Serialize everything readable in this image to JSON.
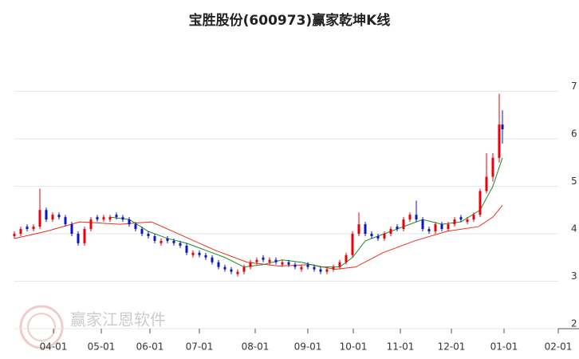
{
  "chart_data": {
    "type": "candlestick",
    "title": "宝胜股份(600973)赢家乾坤K线",
    "watermark": "赢家江恩软件",
    "up_color": "#e8000b",
    "down_color": "#0a14c8",
    "grid": true,
    "xlim": [
      0,
      354
    ],
    "ylim": [
      2,
      8
    ],
    "yticks": [
      2,
      3,
      4,
      5,
      6,
      7
    ],
    "xticks": [
      {
        "value": 24.5,
        "label": "04-01"
      },
      {
        "value": 54.5,
        "label": "05-01"
      },
      {
        "value": 85,
        "label": "06-01"
      },
      {
        "value": 116,
        "label": "07-01"
      },
      {
        "value": 151,
        "label": "08-01"
      },
      {
        "value": 184,
        "label": "09-01"
      },
      {
        "value": 212.5,
        "label": "10-01"
      },
      {
        "value": 242,
        "label": "11-01"
      },
      {
        "value": 274,
        "label": "12-01"
      },
      {
        "value": 307,
        "label": "01-01"
      },
      {
        "value": 341,
        "label": "02-01"
      }
    ],
    "x": [
      0,
      4,
      8,
      12,
      16,
      20,
      24,
      28,
      32,
      36,
      40,
      44,
      48,
      52,
      56,
      60,
      64,
      68,
      72,
      76,
      80,
      84,
      88,
      92,
      96,
      100,
      104,
      108,
      112,
      116,
      120,
      124,
      128,
      132,
      136,
      140,
      144,
      148,
      152,
      156,
      160,
      164,
      168,
      172,
      176,
      180,
      184,
      188,
      192,
      196,
      200,
      204,
      208,
      212,
      216,
      220,
      224,
      228,
      232,
      236,
      240,
      244,
      248,
      252,
      256,
      260,
      264,
      268,
      272,
      276,
      280,
      284,
      288,
      292,
      296,
      300,
      304,
      306
    ],
    "open": [
      3.95,
      4.0,
      4.15,
      4.1,
      4.15,
      4.5,
      4.3,
      4.4,
      4.35,
      4.2,
      4.0,
      3.8,
      4.1,
      4.35,
      4.3,
      4.3,
      4.4,
      4.35,
      4.3,
      4.2,
      4.1,
      4.0,
      3.95,
      3.8,
      3.9,
      3.85,
      3.8,
      3.75,
      3.55,
      3.6,
      3.55,
      3.5,
      3.4,
      3.3,
      3.25,
      3.15,
      3.2,
      3.3,
      3.4,
      3.5,
      3.4,
      3.45,
      3.35,
      3.4,
      3.35,
      3.25,
      3.35,
      3.3,
      3.25,
      3.2,
      3.25,
      3.3,
      3.4,
      3.55,
      4.0,
      4.2,
      4.0,
      3.95,
      3.9,
      4.0,
      4.15,
      4.1,
      4.3,
      4.4,
      4.3,
      4.1,
      4.05,
      4.2,
      4.1,
      4.2,
      4.35,
      4.25,
      4.3,
      4.4,
      4.9,
      5.2,
      5.6,
      6.3
    ],
    "high": [
      4.05,
      4.15,
      4.2,
      4.2,
      4.95,
      4.55,
      4.45,
      4.45,
      4.4,
      4.25,
      4.05,
      4.15,
      4.35,
      4.4,
      4.4,
      4.4,
      4.45,
      4.4,
      4.35,
      4.25,
      4.15,
      4.05,
      4.0,
      3.9,
      3.95,
      3.9,
      3.85,
      3.8,
      3.65,
      3.65,
      3.6,
      3.55,
      3.45,
      3.35,
      3.3,
      3.25,
      3.35,
      3.45,
      3.5,
      3.55,
      3.5,
      3.5,
      3.45,
      3.45,
      3.4,
      3.35,
      3.4,
      3.35,
      3.3,
      3.3,
      3.35,
      3.45,
      3.6,
      4.05,
      4.45,
      4.25,
      4.05,
      4.0,
      4.05,
      4.15,
      4.2,
      4.35,
      4.45,
      4.7,
      4.35,
      4.15,
      4.25,
      4.25,
      4.25,
      4.35,
      4.4,
      4.35,
      4.45,
      4.95,
      5.7,
      5.7,
      6.95,
      6.6
    ],
    "low": [
      3.9,
      3.95,
      4.05,
      4.05,
      4.1,
      4.25,
      4.25,
      4.3,
      4.15,
      3.95,
      3.75,
      3.75,
      4.05,
      4.25,
      4.25,
      4.25,
      4.3,
      4.25,
      4.15,
      4.05,
      3.95,
      3.9,
      3.8,
      3.75,
      3.8,
      3.75,
      3.7,
      3.55,
      3.5,
      3.5,
      3.45,
      3.35,
      3.25,
      3.2,
      3.15,
      3.1,
      3.15,
      3.25,
      3.35,
      3.4,
      3.35,
      3.35,
      3.3,
      3.3,
      3.25,
      3.2,
      3.25,
      3.2,
      3.15,
      3.15,
      3.2,
      3.25,
      3.35,
      3.5,
      3.95,
      3.95,
      3.9,
      3.85,
      3.85,
      3.95,
      4.05,
      4.05,
      4.25,
      4.25,
      4.05,
      4.0,
      4.0,
      4.05,
      4.05,
      4.15,
      4.25,
      4.2,
      4.25,
      4.35,
      4.85,
      5.1,
      5.5,
      5.9
    ],
    "close": [
      4.0,
      4.1,
      4.1,
      4.15,
      4.5,
      4.3,
      4.4,
      4.35,
      4.2,
      4.0,
      3.8,
      4.1,
      4.3,
      4.3,
      4.35,
      4.35,
      4.35,
      4.3,
      4.2,
      4.1,
      4.0,
      3.95,
      3.85,
      3.85,
      3.85,
      3.8,
      3.75,
      3.6,
      3.6,
      3.55,
      3.5,
      3.4,
      3.3,
      3.25,
      3.2,
      3.2,
      3.3,
      3.4,
      3.45,
      3.45,
      3.45,
      3.4,
      3.4,
      3.35,
      3.3,
      3.3,
      3.3,
      3.25,
      3.2,
      3.25,
      3.3,
      3.4,
      3.55,
      4.0,
      4.2,
      4.0,
      3.95,
      3.9,
      4.0,
      4.1,
      4.1,
      4.3,
      4.4,
      4.3,
      4.1,
      4.05,
      4.2,
      4.1,
      4.2,
      4.3,
      4.3,
      4.3,
      4.4,
      4.9,
      5.2,
      5.6,
      6.3,
      6.2
    ],
    "lines": [
      {
        "color": "#e8301c",
        "x": [
          0,
          20,
          41,
          66,
          86,
          106,
          126,
          146,
          166,
          186,
          201,
          214,
          231,
          251,
          271,
          291,
          300,
          306
        ],
        "values": [
          3.9,
          4.05,
          4.25,
          4.2,
          4.25,
          3.95,
          3.65,
          3.4,
          3.32,
          3.35,
          3.25,
          3.3,
          3.6,
          3.85,
          4.05,
          4.15,
          4.35,
          4.6
        ]
      },
      {
        "color": "#1f8a2a",
        "x": [
          60,
          72,
          84,
          96,
          108,
          120,
          132,
          144,
          156,
          168,
          180,
          192,
          204,
          212,
          220,
          232,
          244,
          256,
          268,
          280,
          292,
          300,
          306
        ],
        "values": [
          4.35,
          4.3,
          4.05,
          3.9,
          3.8,
          3.65,
          3.5,
          3.3,
          3.35,
          3.45,
          3.4,
          3.3,
          3.3,
          3.5,
          3.85,
          4.0,
          4.15,
          4.3,
          4.2,
          4.25,
          4.5,
          5.0,
          5.6
        ]
      }
    ]
  }
}
